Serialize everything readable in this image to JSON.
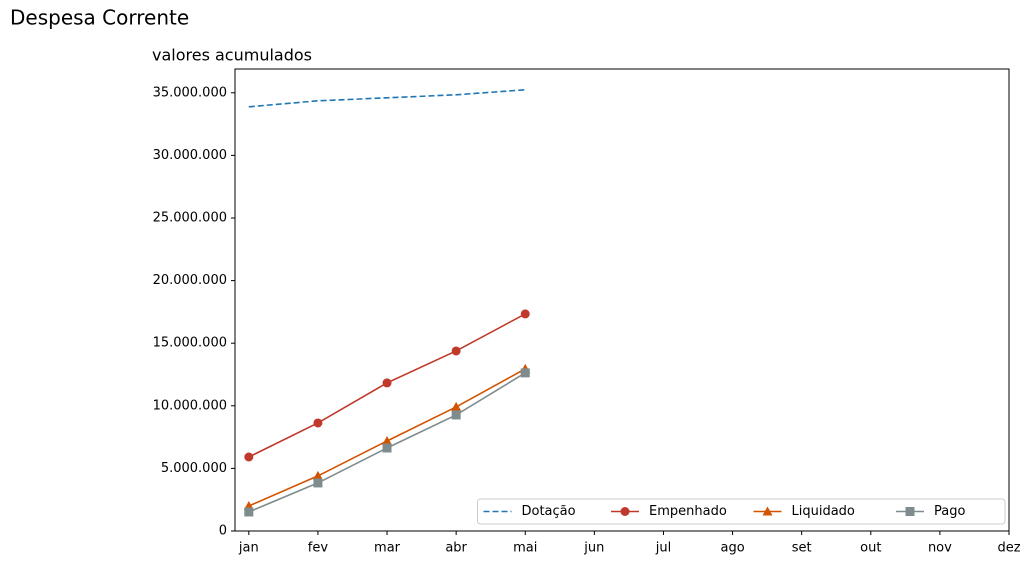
{
  "chart_data": {
    "type": "line",
    "title": "Despesa Corrente",
    "subtitle": "valores acumulados",
    "categories": [
      "jan",
      "fev",
      "mar",
      "abr",
      "mai",
      "jun",
      "jul",
      "ago",
      "set",
      "out",
      "nov",
      "dez"
    ],
    "series": [
      {
        "name": "Dotação",
        "color": "#1f77b4",
        "linestyle": "dashed",
        "marker": "none",
        "values": [
          33880000,
          34360000,
          34600000,
          34840000,
          35240000,
          null,
          null,
          null,
          null,
          null,
          null,
          null
        ]
      },
      {
        "name": "Empenhado",
        "color": "#c0392b",
        "linestyle": "solid",
        "marker": "circle",
        "values": [
          5910000,
          8630000,
          11830000,
          14380000,
          17340000,
          null,
          null,
          null,
          null,
          null,
          null,
          null
        ]
      },
      {
        "name": "Liquidado",
        "color": "#d35400",
        "linestyle": "solid",
        "marker": "triangle",
        "values": [
          2000000,
          4400000,
          7190000,
          9910000,
          12950000,
          null,
          null,
          null,
          null,
          null,
          null,
          null
        ]
      },
      {
        "name": "Pago",
        "color": "#7f8c8d",
        "linestyle": "solid",
        "marker": "square",
        "values": [
          1520000,
          3840000,
          6630000,
          9270000,
          12630000,
          null,
          null,
          null,
          null,
          null,
          null,
          null
        ]
      }
    ],
    "ylim": [
      0,
      36900000
    ],
    "yticks": [
      0,
      {
        "value": 5000000,
        "label": "5.000.000"
      },
      {
        "value": 10000000,
        "label": "10.000.000"
      },
      {
        "value": 15000000,
        "label": "15.000.000"
      },
      {
        "value": 20000000,
        "label": "20.000.000"
      },
      {
        "value": 25000000,
        "label": "25.000.000"
      },
      {
        "value": 30000000,
        "label": "30.000.000"
      },
      {
        "value": 35000000,
        "label": "35.000.000"
      }
    ],
    "grid": false,
    "legend": "lower right"
  }
}
